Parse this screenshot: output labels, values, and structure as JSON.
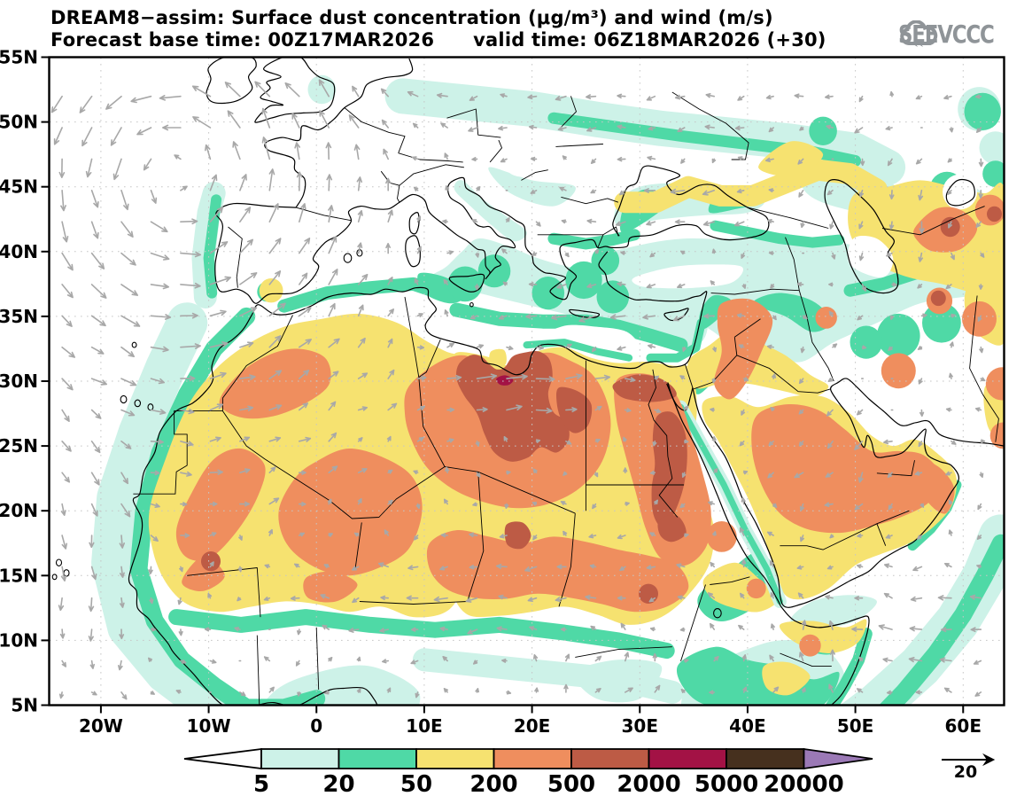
{
  "header": {
    "title": "DREAM8−assim: Surface dust concentration (μg/m³) and wind (m/s)",
    "forecast_base": "Forecast base time: 00Z17MAR2026",
    "valid": "valid time: 06Z18MAR2026 (+30)",
    "logo_text": "SEEVCCC"
  },
  "axes": {
    "lat_ticks": [
      "55N",
      "50N",
      "45N",
      "40N",
      "35N",
      "30N",
      "25N",
      "20N",
      "15N",
      "10N",
      "5N"
    ],
    "lon_ticks": [
      "20W",
      "10W",
      "0",
      "10E",
      "20E",
      "30E",
      "40E",
      "50E",
      "60E"
    ]
  },
  "colorbar": {
    "labels": [
      "5",
      "20",
      "50",
      "200",
      "500",
      "2000",
      "5000",
      "20000"
    ],
    "colors": [
      "#cdf2e8",
      "#4fd9a6",
      "#f6e270",
      "#ef8e5e",
      "#bd5b45",
      "#a31245",
      "#46301e",
      "#9b79b6"
    ],
    "below_color": "#ffffff",
    "outline_color": "#000000"
  },
  "wind_ref": {
    "label": "20"
  },
  "chart_data": {
    "type": "filled_contour_map",
    "model": "DREAM8−assim",
    "field": "Surface dust concentration",
    "units": "μg/m³",
    "wind_units": "m/s",
    "base_time": "00Z17MAR2026",
    "valid_time": "06Z18MAR2026",
    "lead": "+30",
    "lon_range": [
      -24.8,
      63.8
    ],
    "lat_range": [
      5,
      55
    ],
    "grid_lon_step_deg": 10,
    "grid_lat_step_deg": 5,
    "contour_levels": [
      5,
      20,
      50,
      200,
      500,
      2000,
      5000,
      20000
    ],
    "level_colors": [
      "#cdf2e8",
      "#4fd9a6",
      "#f6e270",
      "#ef8e5e",
      "#bd5b45",
      "#a31245",
      "#46301e",
      "#9b79b6"
    ],
    "wind_reference_ms": 20,
    "wind_arrow_color": "#a8a8a8",
    "features": [
      "Dust maximum 2000–5000 μg/m³ core over N Libya near 17E,30N inside a large 500–2000 μg/m³ area (13–25E, 24–32N)",
      "500–2000 μg/m³ patches over N Egypt / Nile delta, Red Sea Hills of Egypt–Sudan, S Libya (~19E,18N) and Senegal (~10W,16N)",
      "200–500 μg/m³ over Morocco–W Algeria, Mauritania–Mali, S Algeria–Niger, Chad–Sudan belt, Egypt, E Syria–NW Saudi, central Arabia, UAE–Oman and near the Aral Sea",
      "50–200 μg/m³ covers most of the Sahara, Sahel, Arabia, a Black Sea–Caucasus–Caspian band and Central Asia",
      "20–50 μg/m³ bands along the NW African Atlantic coast, Sahel ~11N, central Mediterranean, Ukraine–S Russia, Iraq–Iran and the Horn of Africa",
      "5–20 μg/m³ fringes over Iberia offshore, E Mediterranean, Anatolia rim, Arabian Sea band and Gulf of Guinea",
      "Strong cyclonic (counterclockwise) wind circulation over the NE Atlantic west of Iberia; southward coastal jet near the Canaries",
      "Strong westerly jet (arrows toward E) across the N Libya dust core; easterlies over the E Mediterranean and Black Sea; easterlies over the Arabian Sea"
    ]
  }
}
